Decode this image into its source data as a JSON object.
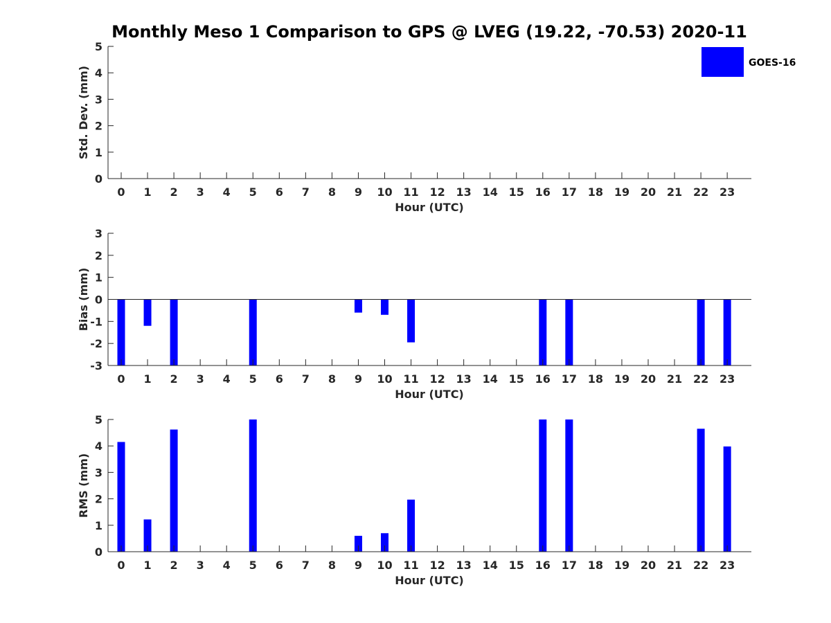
{
  "title": "Monthly Meso 1 Comparison to GPS @ LVEG (19.22, -70.53) 2020-11",
  "legend": {
    "label": "GOES-16",
    "color": "#0000ff",
    "placement": "top-right"
  },
  "chart_data": [
    {
      "type": "bar",
      "name": "stddev",
      "xlabel": "Hour (UTC)",
      "ylabel": "Std. Dev. (mm)",
      "ylim": [
        0,
        5
      ],
      "yticks": [
        0,
        1,
        2,
        3,
        4,
        5
      ],
      "categories": [
        "0",
        "1",
        "2",
        "3",
        "4",
        "5",
        "6",
        "7",
        "8",
        "9",
        "10",
        "11",
        "12",
        "13",
        "14",
        "15",
        "16",
        "17",
        "18",
        "19",
        "20",
        "21",
        "22",
        "23"
      ],
      "series": [
        {
          "values": [
            null,
            null,
            null,
            null,
            null,
            null,
            null,
            null,
            null,
            null,
            null,
            null,
            null,
            null,
            null,
            null,
            null,
            null,
            null,
            null,
            null,
            null,
            null,
            null
          ]
        }
      ],
      "grid": false
    },
    {
      "type": "bar",
      "name": "bias",
      "xlabel": "Hour (UTC)",
      "ylabel": "Bias (mm)",
      "ylim": [
        -3,
        3
      ],
      "yticks": [
        -3,
        -2,
        -1,
        0,
        1,
        2,
        3
      ],
      "categories": [
        "0",
        "1",
        "2",
        "3",
        "4",
        "5",
        "6",
        "7",
        "8",
        "9",
        "10",
        "11",
        "12",
        "13",
        "14",
        "15",
        "16",
        "17",
        "18",
        "19",
        "20",
        "21",
        "22",
        "23"
      ],
      "series": [
        {
          "values": [
            -3.0,
            -1.2,
            -3.0,
            null,
            null,
            -3.0,
            null,
            null,
            null,
            -0.6,
            -0.7,
            -1.95,
            null,
            null,
            null,
            null,
            -3.0,
            -3.0,
            null,
            null,
            null,
            null,
            -3.0,
            -3.0
          ]
        }
      ],
      "grid": false
    },
    {
      "type": "bar",
      "name": "rms",
      "xlabel": "Hour (UTC)",
      "ylabel": "RMS (mm)",
      "ylim": [
        0,
        5
      ],
      "yticks": [
        0,
        1,
        2,
        3,
        4,
        5
      ],
      "categories": [
        "0",
        "1",
        "2",
        "3",
        "4",
        "5",
        "6",
        "7",
        "8",
        "9",
        "10",
        "11",
        "12",
        "13",
        "14",
        "15",
        "16",
        "17",
        "18",
        "19",
        "20",
        "21",
        "22",
        "23"
      ],
      "series": [
        {
          "values": [
            4.15,
            1.22,
            4.62,
            null,
            null,
            5.0,
            null,
            null,
            null,
            0.6,
            0.7,
            1.97,
            null,
            null,
            null,
            null,
            5.0,
            5.0,
            null,
            null,
            null,
            null,
            4.65,
            3.98
          ]
        }
      ],
      "grid": false
    }
  ]
}
